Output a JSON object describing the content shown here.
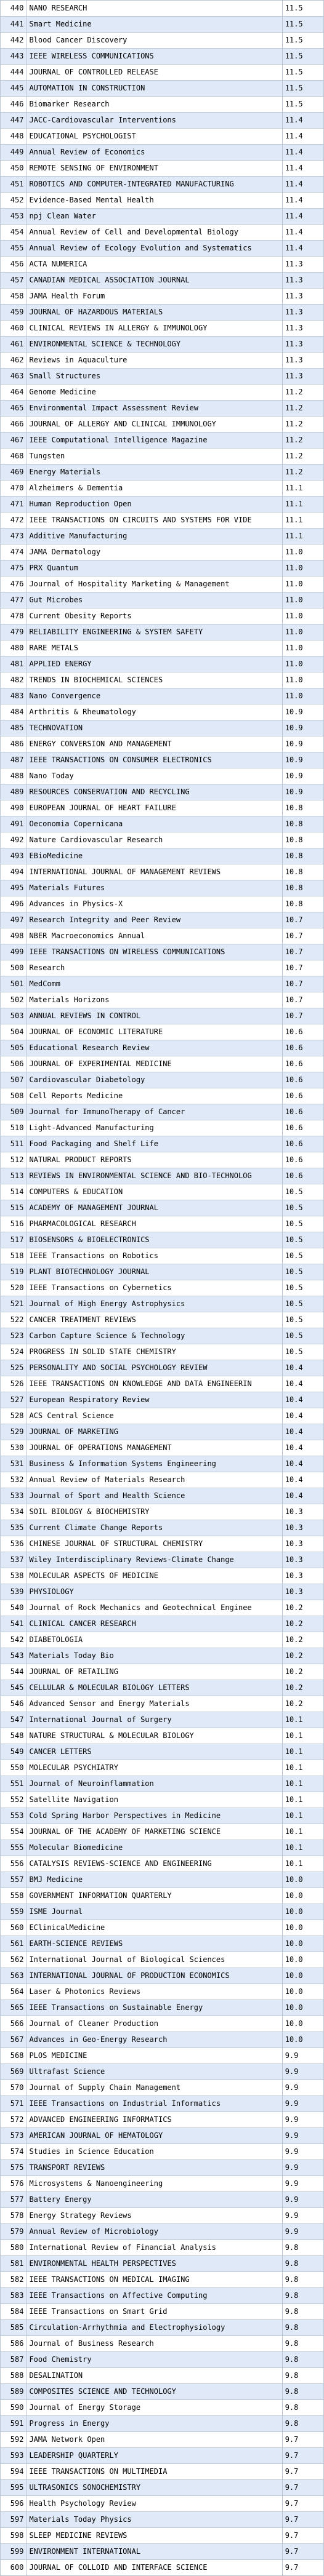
{
  "rows": [
    [
      "440",
      "NANO RESEARCH",
      "11.5"
    ],
    [
      "441",
      "Smart Medicine",
      "11.5"
    ],
    [
      "442",
      "Blood Cancer Discovery",
      "11.5"
    ],
    [
      "443",
      "IEEE WIRELESS COMMUNICATIONS",
      "11.5"
    ],
    [
      "444",
      "JOURNAL OF CONTROLLED RELEASE",
      "11.5"
    ],
    [
      "445",
      "AUTOMATION IN CONSTRUCTION",
      "11.5"
    ],
    [
      "446",
      "Biomarker Research",
      "11.5"
    ],
    [
      "447",
      "JACC-Cardiovascular Interventions",
      "11.4"
    ],
    [
      "448",
      "EDUCATIONAL PSYCHOLOGIST",
      "11.4"
    ],
    [
      "449",
      "Annual Review of Economics",
      "11.4"
    ],
    [
      "450",
      "REMOTE SENSING OF ENVIRONMENT",
      "11.4"
    ],
    [
      "451",
      "ROBOTICS AND COMPUTER-INTEGRATED MANUFACTURING",
      "11.4"
    ],
    [
      "452",
      "Evidence-Based Mental Health",
      "11.4"
    ],
    [
      "453",
      "npj Clean Water",
      "11.4"
    ],
    [
      "454",
      "Annual Review of Cell and Developmental Biology",
      "11.4"
    ],
    [
      "455",
      "Annual Review of Ecology Evolution and Systematics",
      "11.4"
    ],
    [
      "456",
      "ACTA NUMERICA",
      "11.3"
    ],
    [
      "457",
      "CANADIAN MEDICAL ASSOCIATION JOURNAL",
      "11.3"
    ],
    [
      "458",
      "JAMA Health Forum",
      "11.3"
    ],
    [
      "459",
      "JOURNAL OF HAZARDOUS MATERIALS",
      "11.3"
    ],
    [
      "460",
      "CLINICAL REVIEWS IN ALLERGY & IMMUNOLOGY",
      "11.3"
    ],
    [
      "461",
      "ENVIRONMENTAL SCIENCE & TECHNOLOGY",
      "11.3"
    ],
    [
      "462",
      "Reviews in Aquaculture",
      "11.3"
    ],
    [
      "463",
      "Small Structures",
      "11.3"
    ],
    [
      "464",
      "Genome Medicine",
      "11.2"
    ],
    [
      "465",
      "Environmental Impact Assessment Review",
      "11.2"
    ],
    [
      "466",
      "JOURNAL OF ALLERGY AND CLINICAL IMMUNOLOGY",
      "11.2"
    ],
    [
      "467",
      "IEEE Computational Intelligence Magazine",
      "11.2"
    ],
    [
      "468",
      "Tungsten",
      "11.2"
    ],
    [
      "469",
      "Energy Materials",
      "11.2"
    ],
    [
      "470",
      "Alzheimers & Dementia",
      "11.1"
    ],
    [
      "471",
      "Human Reproduction Open",
      "11.1"
    ],
    [
      "472",
      "IEEE TRANSACTIONS ON CIRCUITS AND SYSTEMS FOR VIDE",
      "11.1"
    ],
    [
      "473",
      "Additive Manufacturing",
      "11.1"
    ],
    [
      "474",
      "JAMA Dermatology",
      "11.0"
    ],
    [
      "475",
      "PRX Quantum",
      "11.0"
    ],
    [
      "476",
      "Journal of Hospitality Marketing & Management",
      "11.0"
    ],
    [
      "477",
      "Gut Microbes",
      "11.0"
    ],
    [
      "478",
      "Current Obesity Reports",
      "11.0"
    ],
    [
      "479",
      "RELIABILITY ENGINEERING & SYSTEM SAFETY",
      "11.0"
    ],
    [
      "480",
      "RARE METALS",
      "11.0"
    ],
    [
      "481",
      "APPLIED ENERGY",
      "11.0"
    ],
    [
      "482",
      "TRENDS IN BIOCHEMICAL SCIENCES",
      "11.0"
    ],
    [
      "483",
      "Nano Convergence",
      "11.0"
    ],
    [
      "484",
      "Arthritis & Rheumatology",
      "10.9"
    ],
    [
      "485",
      "TECHNOVATION",
      "10.9"
    ],
    [
      "486",
      "ENERGY CONVERSION AND MANAGEMENT",
      "10.9"
    ],
    [
      "487",
      "IEEE TRANSACTIONS ON CONSUMER ELECTRONICS",
      "10.9"
    ],
    [
      "488",
      "Nano Today",
      "10.9"
    ],
    [
      "489",
      "RESOURCES CONSERVATION AND RECYCLING",
      "10.9"
    ],
    [
      "490",
      "EUROPEAN JOURNAL OF HEART FAILURE",
      "10.8"
    ],
    [
      "491",
      "Oeconomia Copernicana",
      "10.8"
    ],
    [
      "492",
      "Nature Cardiovascular Research",
      "10.8"
    ],
    [
      "493",
      "EBioMedicine",
      "10.8"
    ],
    [
      "494",
      "INTERNATIONAL JOURNAL OF MANAGEMENT REVIEWS",
      "10.8"
    ],
    [
      "495",
      "Materials Futures",
      "10.8"
    ],
    [
      "496",
      "Advances in Physics-X",
      "10.8"
    ],
    [
      "497",
      "Research Integrity and Peer Review",
      "10.7"
    ],
    [
      "498",
      "NBER Macroeconomics Annual",
      "10.7"
    ],
    [
      "499",
      "IEEE TRANSACTIONS ON WIRELESS COMMUNICATIONS",
      "10.7"
    ],
    [
      "500",
      "Research",
      "10.7"
    ],
    [
      "501",
      "MedComm",
      "10.7"
    ],
    [
      "502",
      "Materials Horizons",
      "10.7"
    ],
    [
      "503",
      "ANNUAL REVIEWS IN CONTROL",
      "10.7"
    ],
    [
      "504",
      "JOURNAL OF ECONOMIC LITERATURE",
      "10.6"
    ],
    [
      "505",
      "Educational Research Review",
      "10.6"
    ],
    [
      "506",
      "JOURNAL OF EXPERIMENTAL MEDICINE",
      "10.6"
    ],
    [
      "507",
      "Cardiovascular Diabetology",
      "10.6"
    ],
    [
      "508",
      "Cell Reports Medicine",
      "10.6"
    ],
    [
      "509",
      "Journal for ImmunoTherapy of Cancer",
      "10.6"
    ],
    [
      "510",
      "Light-Advanced Manufacturing",
      "10.6"
    ],
    [
      "511",
      "Food Packaging and Shelf Life",
      "10.6"
    ],
    [
      "512",
      "NATURAL PRODUCT REPORTS",
      "10.6"
    ],
    [
      "513",
      "REVIEWS IN ENVIRONMENTAL SCIENCE AND BIO-TECHNOLOG",
      "10.6"
    ],
    [
      "514",
      "COMPUTERS & EDUCATION",
      "10.5"
    ],
    [
      "515",
      "ACADEMY OF MANAGEMENT JOURNAL",
      "10.5"
    ],
    [
      "516",
      "PHARMACOLOGICAL RESEARCH",
      "10.5"
    ],
    [
      "517",
      "BIOSENSORS & BIOELECTRONICS",
      "10.5"
    ],
    [
      "518",
      "IEEE Transactions on Robotics",
      "10.5"
    ],
    [
      "519",
      "PLANT BIOTECHNOLOGY JOURNAL",
      "10.5"
    ],
    [
      "520",
      "IEEE Transactions on Cybernetics",
      "10.5"
    ],
    [
      "521",
      "Journal of High Energy Astrophysics",
      "10.5"
    ],
    [
      "522",
      "CANCER TREATMENT REVIEWS",
      "10.5"
    ],
    [
      "523",
      "Carbon Capture Science & Technology",
      "10.5"
    ],
    [
      "524",
      "PROGRESS IN SOLID STATE CHEMISTRY",
      "10.5"
    ],
    [
      "525",
      "PERSONALITY AND SOCIAL PSYCHOLOGY REVIEW",
      "10.4"
    ],
    [
      "526",
      "IEEE TRANSACTIONS ON KNOWLEDGE AND DATA ENGINEERIN",
      "10.4"
    ],
    [
      "527",
      "European Respiratory Review",
      "10.4"
    ],
    [
      "528",
      "ACS Central Science",
      "10.4"
    ],
    [
      "529",
      "JOURNAL OF MARKETING",
      "10.4"
    ],
    [
      "530",
      "JOURNAL OF OPERATIONS MANAGEMENT",
      "10.4"
    ],
    [
      "531",
      "Business & Information Systems Engineering",
      "10.4"
    ],
    [
      "532",
      "Annual Review of Materials Research",
      "10.4"
    ],
    [
      "533",
      "Journal of Sport and Health Science",
      "10.4"
    ],
    [
      "534",
      "SOIL BIOLOGY & BIOCHEMISTRY",
      "10.3"
    ],
    [
      "535",
      "Current Climate Change Reports",
      "10.3"
    ],
    [
      "536",
      "CHINESE JOURNAL OF STRUCTURAL CHEMISTRY",
      "10.3"
    ],
    [
      "537",
      "Wiley Interdisciplinary Reviews-Climate Change",
      "10.3"
    ],
    [
      "538",
      "MOLECULAR ASPECTS OF MEDICINE",
      "10.3"
    ],
    [
      "539",
      "PHYSIOLOGY",
      "10.3"
    ],
    [
      "540",
      "Journal of Rock Mechanics and Geotechnical Enginee",
      "10.2"
    ],
    [
      "541",
      "CLINICAL CANCER RESEARCH",
      "10.2"
    ],
    [
      "542",
      "DIABETOLOGIA",
      "10.2"
    ],
    [
      "543",
      "Materials Today Bio",
      "10.2"
    ],
    [
      "544",
      "JOURNAL OF RETAILING",
      "10.2"
    ],
    [
      "545",
      "CELLULAR & MOLECULAR BIOLOGY LETTERS",
      "10.2"
    ],
    [
      "546",
      "Advanced Sensor and Energy Materials",
      "10.2"
    ],
    [
      "547",
      "International Journal of Surgery",
      "10.1"
    ],
    [
      "548",
      "NATURE STRUCTURAL & MOLECULAR BIOLOGY",
      "10.1"
    ],
    [
      "549",
      "CANCER LETTERS",
      "10.1"
    ],
    [
      "550",
      "MOLECULAR PSYCHIATRY",
      "10.1"
    ],
    [
      "551",
      "Journal of Neuroinflammation",
      "10.1"
    ],
    [
      "552",
      "Satellite Navigation",
      "10.1"
    ],
    [
      "553",
      "Cold Spring Harbor Perspectives in Medicine",
      "10.1"
    ],
    [
      "554",
      "JOURNAL OF THE ACADEMY OF MARKETING SCIENCE",
      "10.1"
    ],
    [
      "555",
      "Molecular Biomedicine",
      "10.1"
    ],
    [
      "556",
      "CATALYSIS REVIEWS-SCIENCE AND ENGINEERING",
      "10.1"
    ],
    [
      "557",
      "BMJ Medicine",
      "10.0"
    ],
    [
      "558",
      "GOVERNMENT INFORMATION QUARTERLY",
      "10.0"
    ],
    [
      "559",
      "ISME Journal",
      "10.0"
    ],
    [
      "560",
      "EClinicalMedicine",
      "10.0"
    ],
    [
      "561",
      "EARTH-SCIENCE REVIEWS",
      "10.0"
    ],
    [
      "562",
      "International Journal of Biological Sciences",
      "10.0"
    ],
    [
      "563",
      "INTERNATIONAL JOURNAL OF PRODUCTION ECONOMICS",
      "10.0"
    ],
    [
      "564",
      "Laser & Photonics Reviews",
      "10.0"
    ],
    [
      "565",
      "IEEE Transactions on Sustainable Energy",
      "10.0"
    ],
    [
      "566",
      "Journal of Cleaner Production",
      "10.0"
    ],
    [
      "567",
      "Advances in Geo-Energy Research",
      "10.0"
    ],
    [
      "568",
      "PLOS MEDICINE",
      "9.9"
    ],
    [
      "569",
      "Ultrafast Science",
      "9.9"
    ],
    [
      "570",
      "Journal of Supply Chain Management",
      "9.9"
    ],
    [
      "571",
      "IEEE Transactions on Industrial Informatics",
      "9.9"
    ],
    [
      "572",
      "ADVANCED ENGINEERING INFORMATICS",
      "9.9"
    ],
    [
      "573",
      "AMERICAN JOURNAL OF HEMATOLOGY",
      "9.9"
    ],
    [
      "574",
      "Studies in Science Education",
      "9.9"
    ],
    [
      "575",
      "TRANSPORT REVIEWS",
      "9.9"
    ],
    [
      "576",
      "Microsystems & Nanoengineering",
      "9.9"
    ],
    [
      "577",
      "Battery Energy",
      "9.9"
    ],
    [
      "578",
      "Energy Strategy Reviews",
      "9.9"
    ],
    [
      "579",
      "Annual Review of Microbiology",
      "9.9"
    ],
    [
      "580",
      "International Review of Financial Analysis",
      "9.8"
    ],
    [
      "581",
      "ENVIRONMENTAL HEALTH PERSPECTIVES",
      "9.8"
    ],
    [
      "582",
      "IEEE TRANSACTIONS ON MEDICAL IMAGING",
      "9.8"
    ],
    [
      "583",
      "IEEE Transactions on Affective Computing",
      "9.8"
    ],
    [
      "584",
      "IEEE Transactions on Smart Grid",
      "9.8"
    ],
    [
      "585",
      "Circulation-Arrhythmia and Electrophysiology",
      "9.8"
    ],
    [
      "586",
      "Journal of Business Research",
      "9.8"
    ],
    [
      "587",
      "Food Chemistry",
      "9.8"
    ],
    [
      "588",
      "DESALINATION",
      "9.8"
    ],
    [
      "589",
      "COMPOSITES SCIENCE AND TECHNOLOGY",
      "9.8"
    ],
    [
      "590",
      "Journal of Energy Storage",
      "9.8"
    ],
    [
      "591",
      "Progress in Energy",
      "9.8"
    ],
    [
      "592",
      "JAMA Network Open",
      "9.7"
    ],
    [
      "593",
      "LEADERSHIP QUARTERLY",
      "9.7"
    ],
    [
      "594",
      "IEEE TRANSACTIONS ON MULTIMEDIA",
      "9.7"
    ],
    [
      "595",
      "ULTRASONICS SONOCHEMISTRY",
      "9.7"
    ],
    [
      "596",
      "Health Psychology Review",
      "9.7"
    ],
    [
      "597",
      "Materials Today Physics",
      "9.7"
    ],
    [
      "598",
      "SLEEP MEDICINE REVIEWS",
      "9.7"
    ],
    [
      "599",
      "ENVIRONMENT INTERNATIONAL",
      "9.7"
    ],
    [
      "600",
      "JOURNAL OF COLLOID AND INTERFACE SCIENCE",
      "9.7"
    ]
  ]
}
